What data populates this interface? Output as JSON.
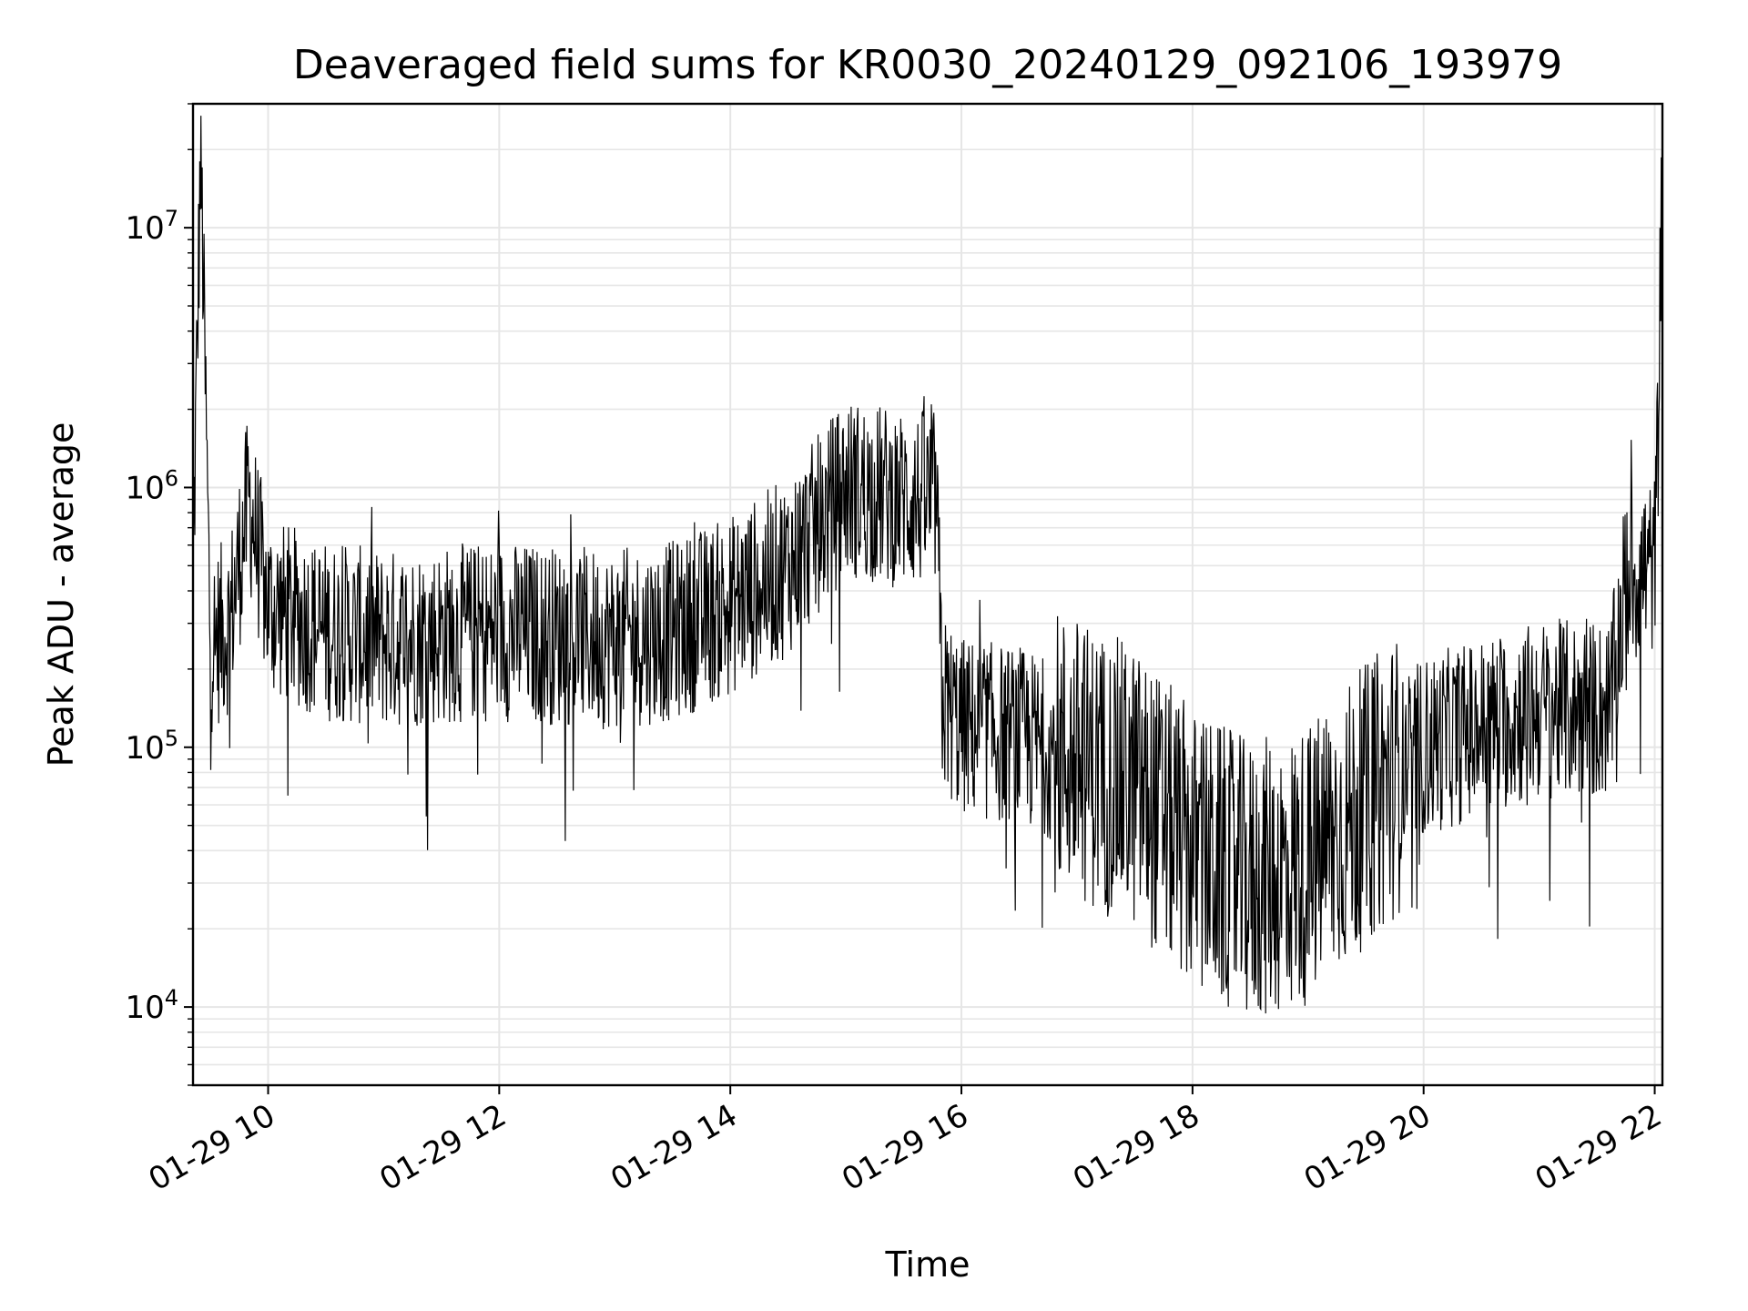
{
  "chart_data": {
    "type": "line",
    "title": "Deaveraged field sums for KR0030_20240129_092106_193979",
    "xlabel": "Time",
    "ylabel": "Peak ADU - average",
    "y_scale": "log",
    "ylim": [
      5000,
      30000000
    ],
    "xlim": [
      "2024-01-29 09:21",
      "2024-01-29 22:04"
    ],
    "x_tick_labels": [
      "01-29 10",
      "01-29 12",
      "01-29 14",
      "01-29 16",
      "01-29 18",
      "01-29 20",
      "01-29 22"
    ],
    "y_tick_labels": [
      {
        "base": "10",
        "exp": "4"
      },
      {
        "base": "10",
        "exp": "5"
      },
      {
        "base": "10",
        "exp": "6"
      },
      {
        "base": "10",
        "exp": "7"
      }
    ],
    "grid": true,
    "line_color": "#000000",
    "grid_color": "#e6e6e6",
    "series": [
      {
        "x": [
          "2024-01-29 09:21",
          "2024-01-29 09:25",
          "2024-01-29 09:30",
          "2024-01-29 09:40",
          "2024-01-29 09:50",
          "2024-01-29 10:00",
          "2024-01-29 10:30",
          "2024-01-29 11:00",
          "2024-01-29 11:30",
          "2024-01-29 12:00",
          "2024-01-29 12:30",
          "2024-01-29 13:00",
          "2024-01-29 13:30",
          "2024-01-29 14:00",
          "2024-01-29 14:30",
          "2024-01-29 15:00",
          "2024-01-29 15:30",
          "2024-01-29 15:47",
          "2024-01-29 15:50",
          "2024-01-29 16:00",
          "2024-01-29 16:30",
          "2024-01-29 17:00",
          "2024-01-29 17:30",
          "2024-01-29 18:00",
          "2024-01-29 18:30",
          "2024-01-29 19:00",
          "2024-01-29 19:30",
          "2024-01-29 20:00",
          "2024-01-29 20:30",
          "2024-01-29 21:00",
          "2024-01-29 21:37",
          "2024-01-29 21:45",
          "2024-01-29 22:00",
          "2024-01-29 22:04"
        ],
        "values": [
          450000,
          20000000,
          250000,
          300000,
          900000,
          350000,
          280000,
          260000,
          270000,
          280000,
          270000,
          260000,
          280000,
          350000,
          500000,
          1000000,
          900000,
          900000,
          150000,
          120000,
          110000,
          90000,
          70000,
          40000,
          30000,
          35000,
          60000,
          100000,
          120000,
          140000,
          140000,
          450000,
          500000,
          8000000
        ]
      }
    ],
    "noise_note_free": true
  }
}
